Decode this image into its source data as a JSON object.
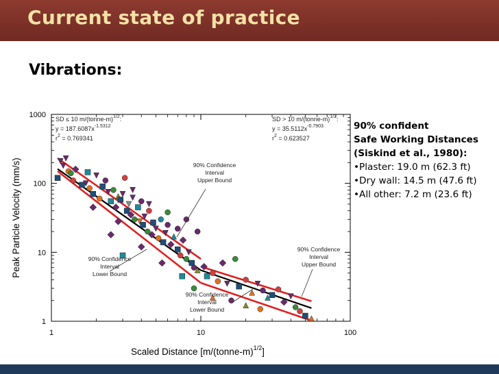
{
  "slide": {
    "title": "Current state of practice",
    "heading": "Vibrations:"
  },
  "notes": {
    "header_lines": [
      "90% confident",
      "Safe Working Distances",
      "(Siskind et al., 1980):"
    ],
    "bullets": [
      "•Plaster: 19.0 m (62.3 ft)",
      "•Dry wall: 14.5 m (47.6 ft)",
      "•All other: 7.2 m (23.6 ft)"
    ]
  },
  "colors": {
    "banner": "#7d3128",
    "title_text": "#f3e1a6",
    "footer": "#1f3a5a",
    "bound_line": "#e02020",
    "fit_line": "#000000"
  },
  "chart_data": {
    "type": "scatter",
    "xlabel": "Scaled Distance [m/(tonne-m)",
    "xlabel_sup": "1/2",
    "xlabel_tail": "]",
    "ylabel": "Peak Particle Velocity (mm/s)",
    "x_scale": "log",
    "y_scale": "log",
    "xlim": [
      1,
      100
    ],
    "ylim": [
      1,
      1000
    ],
    "x_ticks": [
      "1",
      "10",
      "100"
    ],
    "y_ticks": [
      "1000",
      "100",
      "10",
      "1"
    ],
    "grid": false,
    "annotations": {
      "eq_left": [
        "SD ≤ 10 m/(tonne-m)",
        "1/2",
        ":",
        "y = 187.6087x",
        "-1.5312",
        "r",
        "2",
        " = 0.769341"
      ],
      "eq_right": [
        "SD > 10 m/(tonne-m)",
        "1/2",
        ":",
        "y = 35.5112x",
        "-0.7903",
        "r",
        "2",
        " = 0.623527"
      ],
      "upper_left": [
        "90% Confidence",
        "Interval",
        "Upper Bound"
      ],
      "lower_left": [
        "90% Confidence",
        "Interval",
        "Lower Bound"
      ],
      "upper_right": [
        "90% Confidence",
        "Interval",
        "Upper Bound"
      ],
      "lower_right": [
        "90% Confidence",
        "Interval",
        "Lower Bound"
      ]
    },
    "lines": [
      {
        "name": "fit",
        "color": "#000000",
        "points": [
          [
            1.1,
            162
          ],
          [
            10,
            5.5
          ],
          [
            55,
            1.55
          ]
        ]
      },
      {
        "name": "upper-bound-left",
        "color": "#e02020",
        "points": [
          [
            1.1,
            232
          ],
          [
            10,
            8
          ]
        ]
      },
      {
        "name": "lower-bound-left",
        "color": "#e02020",
        "points": [
          [
            1.1,
            150
          ],
          [
            10,
            3.6
          ]
        ]
      },
      {
        "name": "upper-bound-right",
        "color": "#e02020",
        "points": [
          [
            10,
            6.2
          ],
          [
            55,
            1.95
          ]
        ]
      },
      {
        "name": "lower-bound-right",
        "color": "#e02020",
        "points": [
          [
            10,
            3.6
          ],
          [
            55,
            1.02
          ]
        ]
      }
    ],
    "points": [
      {
        "x": 1.15,
        "y": 210,
        "m": "tri-down",
        "c": "#6a2a6a"
      },
      {
        "x": 1.2,
        "y": 180,
        "m": "tri-down",
        "c": "#6a2a6a"
      },
      {
        "x": 1.25,
        "y": 230,
        "m": "tri-down",
        "c": "#6a2a6a"
      },
      {
        "x": 1.3,
        "y": 150,
        "m": "circle",
        "c": "#e07020"
      },
      {
        "x": 1.1,
        "y": 120,
        "m": "square",
        "c": "#1f4e79"
      },
      {
        "x": 1.35,
        "y": 140,
        "m": "circle",
        "c": "#3a8a3a"
      },
      {
        "x": 1.4,
        "y": 110,
        "m": "circle",
        "c": "#d24040"
      },
      {
        "x": 1.45,
        "y": 160,
        "m": "diamond",
        "c": "#6a2a6a"
      },
      {
        "x": 1.6,
        "y": 95,
        "m": "square",
        "c": "#1f4e79"
      },
      {
        "x": 1.7,
        "y": 100,
        "m": "tri-down",
        "c": "#6a2a6a"
      },
      {
        "x": 1.75,
        "y": 145,
        "m": "square",
        "c": "#1f8a9a"
      },
      {
        "x": 1.8,
        "y": 85,
        "m": "circle",
        "c": "#e07020"
      },
      {
        "x": 1.9,
        "y": 70,
        "m": "square",
        "c": "#1f4e79"
      },
      {
        "x": 2.0,
        "y": 130,
        "m": "tri-down",
        "c": "#6a2a6a"
      },
      {
        "x": 2.1,
        "y": 60,
        "m": "circle",
        "c": "#e07020"
      },
      {
        "x": 2.2,
        "y": 90,
        "m": "square",
        "c": "#1f4e79"
      },
      {
        "x": 2.3,
        "y": 110,
        "m": "circle",
        "c": "#6a2a6a"
      },
      {
        "x": 2.4,
        "y": 75,
        "m": "tri-down",
        "c": "#6a2a6a"
      },
      {
        "x": 2.5,
        "y": 55,
        "m": "square",
        "c": "#1f8a9a"
      },
      {
        "x": 2.6,
        "y": 80,
        "m": "circle",
        "c": "#3a8a3a"
      },
      {
        "x": 2.7,
        "y": 45,
        "m": "diamond",
        "c": "#6a2a6a"
      },
      {
        "x": 2.8,
        "y": 65,
        "m": "tri-up",
        "c": "#8a8a2a"
      },
      {
        "x": 2.9,
        "y": 58,
        "m": "square",
        "c": "#1f4e79"
      },
      {
        "x": 3.0,
        "y": 70,
        "m": "tri-down",
        "c": "#6a2a6a"
      },
      {
        "x": 3.1,
        "y": 120,
        "m": "circle",
        "c": "#d24040"
      },
      {
        "x": 3.2,
        "y": 40,
        "m": "square",
        "c": "#1f4e79"
      },
      {
        "x": 3.3,
        "y": 50,
        "m": "tri-down",
        "c": "#8a8a8a"
      },
      {
        "x": 3.4,
        "y": 35,
        "m": "diamond",
        "c": "#6a2a6a"
      },
      {
        "x": 3.5,
        "y": 62,
        "m": "tri-down",
        "c": "#6a2a6a"
      },
      {
        "x": 3.6,
        "y": 30,
        "m": "circle",
        "c": "#3a8a3a"
      },
      {
        "x": 3.8,
        "y": 45,
        "m": "square",
        "c": "#1f8a9a"
      },
      {
        "x": 3.9,
        "y": 28,
        "m": "tri-down",
        "c": "#e07020"
      },
      {
        "x": 4.0,
        "y": 55,
        "m": "circle",
        "c": "#6a2a6a"
      },
      {
        "x": 4.1,
        "y": 25,
        "m": "square",
        "c": "#1f4e79"
      },
      {
        "x": 4.2,
        "y": 33,
        "m": "tri-down",
        "c": "#6a2a6a"
      },
      {
        "x": 4.4,
        "y": 20,
        "m": "circle",
        "c": "#3a8a3a"
      },
      {
        "x": 4.5,
        "y": 40,
        "m": "circle",
        "c": "#d24040"
      },
      {
        "x": 4.7,
        "y": 18,
        "m": "diamond",
        "c": "#6a2a6a"
      },
      {
        "x": 4.8,
        "y": 27,
        "m": "square",
        "c": "#1f4e79"
      },
      {
        "x": 5.0,
        "y": 22,
        "m": "tri-down",
        "c": "#6a2a6a"
      },
      {
        "x": 5.2,
        "y": 16,
        "m": "circle",
        "c": "#e07020"
      },
      {
        "x": 5.4,
        "y": 30,
        "m": "circle",
        "c": "#1f8a9a"
      },
      {
        "x": 5.6,
        "y": 14,
        "m": "square",
        "c": "#1f4e79"
      },
      {
        "x": 5.8,
        "y": 19,
        "m": "tri-down",
        "c": "#6a2a6a"
      },
      {
        "x": 6.0,
        "y": 25,
        "m": "circle",
        "c": "#6a2a6a"
      },
      {
        "x": 6.3,
        "y": 13,
        "m": "diamond",
        "c": "#6a2a6a"
      },
      {
        "x": 6.6,
        "y": 17,
        "m": "tri-up",
        "c": "#1f8a9a"
      },
      {
        "x": 7.0,
        "y": 11,
        "m": "square",
        "c": "#1f4e79"
      },
      {
        "x": 7.3,
        "y": 9,
        "m": "circle",
        "c": "#d24040"
      },
      {
        "x": 7.6,
        "y": 15,
        "m": "diamond",
        "c": "#6a2a6a"
      },
      {
        "x": 8.0,
        "y": 8,
        "m": "circle",
        "c": "#3a8a3a"
      },
      {
        "x": 8.3,
        "y": 10,
        "m": "tri-down",
        "c": "#6a2a6a"
      },
      {
        "x": 8.7,
        "y": 7,
        "m": "square",
        "c": "#1f4e79"
      },
      {
        "x": 9.0,
        "y": 6,
        "m": "circle",
        "c": "#6a2a6a"
      },
      {
        "x": 9.5,
        "y": 5.5,
        "m": "tri-up",
        "c": "#8a8a2a"
      },
      {
        "x": 10.5,
        "y": 6.2,
        "m": "diamond",
        "c": "#6a2a6a"
      },
      {
        "x": 11,
        "y": 4.5,
        "m": "square",
        "c": "#1f8a9a"
      },
      {
        "x": 12,
        "y": 5,
        "m": "circle",
        "c": "#d24040"
      },
      {
        "x": 13,
        "y": 3.8,
        "m": "circle",
        "c": "#e07020"
      },
      {
        "x": 14,
        "y": 7,
        "m": "diamond",
        "c": "#6a2a6a"
      },
      {
        "x": 15,
        "y": 3.5,
        "m": "tri-down",
        "c": "#6a2a6a"
      },
      {
        "x": 17,
        "y": 8,
        "m": "circle",
        "c": "#3a8a3a"
      },
      {
        "x": 18,
        "y": 3.2,
        "m": "square",
        "c": "#1f4e79"
      },
      {
        "x": 20,
        "y": 4,
        "m": "circle",
        "c": "#d24040"
      },
      {
        "x": 22,
        "y": 2.6,
        "m": "tri-up",
        "c": "#e07020"
      },
      {
        "x": 24,
        "y": 3.5,
        "m": "tri-down",
        "c": "#6a2a6a"
      },
      {
        "x": 26,
        "y": 2.8,
        "m": "circle",
        "c": "#6a2a6a"
      },
      {
        "x": 28,
        "y": 2.2,
        "m": "tri-up",
        "c": "#1f8a9a"
      },
      {
        "x": 30,
        "y": 2.4,
        "m": "square",
        "c": "#1f4e79"
      },
      {
        "x": 33,
        "y": 2.9,
        "m": "circle",
        "c": "#d24040"
      },
      {
        "x": 36,
        "y": 1.9,
        "m": "diamond",
        "c": "#6a2a6a"
      },
      {
        "x": 40,
        "y": 2.3,
        "m": "tri-down",
        "c": "#6a2a6a"
      },
      {
        "x": 43,
        "y": 1.6,
        "m": "circle",
        "c": "#3a8a3a"
      },
      {
        "x": 46,
        "y": 1.4,
        "m": "circle",
        "c": "#d24040"
      },
      {
        "x": 50,
        "y": 1.2,
        "m": "square",
        "c": "#1f4e79"
      },
      {
        "x": 55,
        "y": 1.1,
        "m": "tri-up",
        "c": "#e07020"
      },
      {
        "x": 3.0,
        "y": 9,
        "m": "square",
        "c": "#1f8a9a"
      },
      {
        "x": 4.0,
        "y": 12,
        "m": "diamond",
        "c": "#6a2a6a"
      },
      {
        "x": 5.5,
        "y": 7,
        "m": "diamond",
        "c": "#6a2a6a"
      },
      {
        "x": 2.5,
        "y": 18,
        "m": "diamond",
        "c": "#6a2a6a"
      },
      {
        "x": 7.5,
        "y": 4.5,
        "m": "square",
        "c": "#1f8a9a"
      },
      {
        "x": 9.0,
        "y": 3.0,
        "m": "circle",
        "c": "#3a8a3a"
      },
      {
        "x": 12,
        "y": 2.2,
        "m": "tri-up",
        "c": "#e07020"
      },
      {
        "x": 16,
        "y": 2.0,
        "m": "circle",
        "c": "#6a2a6a"
      },
      {
        "x": 20,
        "y": 1.7,
        "m": "tri-up",
        "c": "#8a8a2a"
      },
      {
        "x": 25,
        "y": 1.5,
        "m": "circle",
        "c": "#e07020"
      },
      {
        "x": 8.0,
        "y": 30,
        "m": "circle",
        "c": "#6a2a6a"
      },
      {
        "x": 6.0,
        "y": 38,
        "m": "circle",
        "c": "#3a8a3a"
      },
      {
        "x": 7.0,
        "y": 22,
        "m": "circle",
        "c": "#6a2a6a"
      },
      {
        "x": 9.5,
        "y": 20,
        "m": "circle",
        "c": "#6a2a6a"
      },
      {
        "x": 3.5,
        "y": 80,
        "m": "tri-down",
        "c": "#6a2a6a"
      },
      {
        "x": 4.5,
        "y": 50,
        "m": "tri-down",
        "c": "#6a2a6a"
      },
      {
        "x": 1.9,
        "y": 45,
        "m": "diamond",
        "c": "#6a2a6a"
      },
      {
        "x": 2.8,
        "y": 28,
        "m": "diamond",
        "c": "#6a2a6a"
      }
    ]
  }
}
